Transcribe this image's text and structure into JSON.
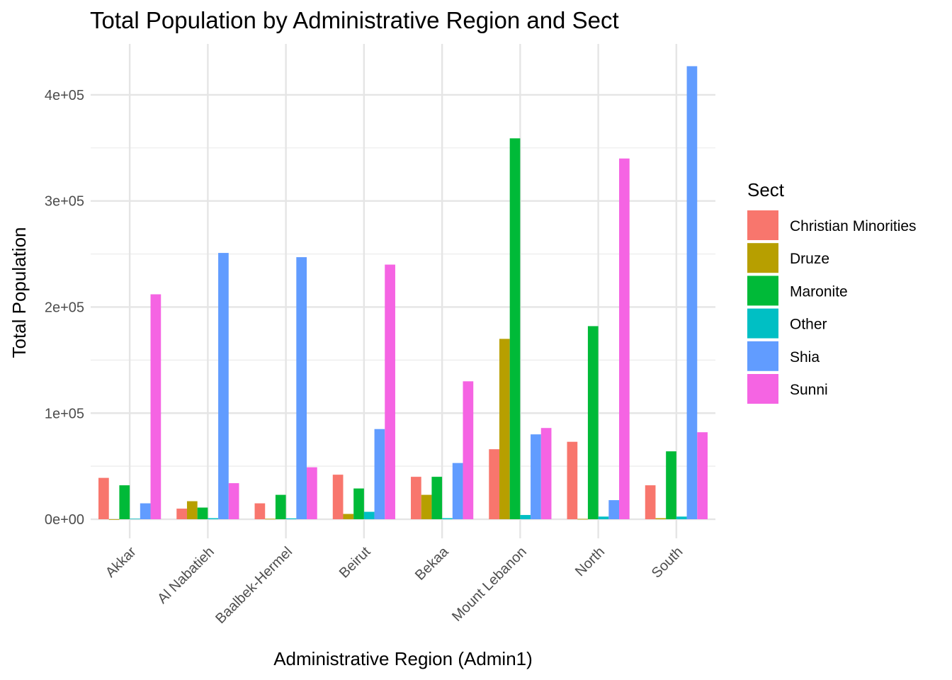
{
  "chart_data": {
    "type": "bar",
    "title": "Total Population by Administrative Region and Sect",
    "xlabel": "Administrative Region (Admin1)",
    "ylabel": "Total Population",
    "ylim": [
      -18000,
      448000
    ],
    "y_ticks": [
      0,
      100000,
      200000,
      300000,
      400000
    ],
    "y_tick_labels": [
      "0e+00",
      "1e+05",
      "2e+05",
      "3e+05",
      "4e+05"
    ],
    "grid": true,
    "legend_title": "Sect",
    "legend_position": "right",
    "categories": [
      "Akkar",
      "Al Nabatieh",
      "Baalbek-Hermel",
      "Beirut",
      "Bekaa",
      "Mount Lebanon",
      "North",
      "South"
    ],
    "series": [
      {
        "name": "Christian Minorities",
        "color": "#F8766D",
        "values": [
          39000,
          10000,
          15000,
          42000,
          40000,
          66000,
          73000,
          32000
        ]
      },
      {
        "name": "Druze",
        "color": "#B79F00",
        "values": [
          0,
          17000,
          400,
          5000,
          23000,
          170000,
          300,
          1000
        ]
      },
      {
        "name": "Maronite",
        "color": "#00BA38",
        "values": [
          32000,
          11000,
          23000,
          29000,
          40000,
          359000,
          182000,
          64000
        ]
      },
      {
        "name": "Other",
        "color": "#00BFC4",
        "values": [
          500,
          1000,
          800,
          7000,
          1000,
          4000,
          2500,
          2500
        ]
      },
      {
        "name": "Shia",
        "color": "#619CFF",
        "values": [
          15000,
          251000,
          247000,
          85000,
          53000,
          80000,
          18000,
          427000
        ]
      },
      {
        "name": "Sunni",
        "color": "#F564E3",
        "values": [
          212000,
          34000,
          49000,
          240000,
          130000,
          86000,
          340000,
          82000
        ]
      }
    ]
  }
}
